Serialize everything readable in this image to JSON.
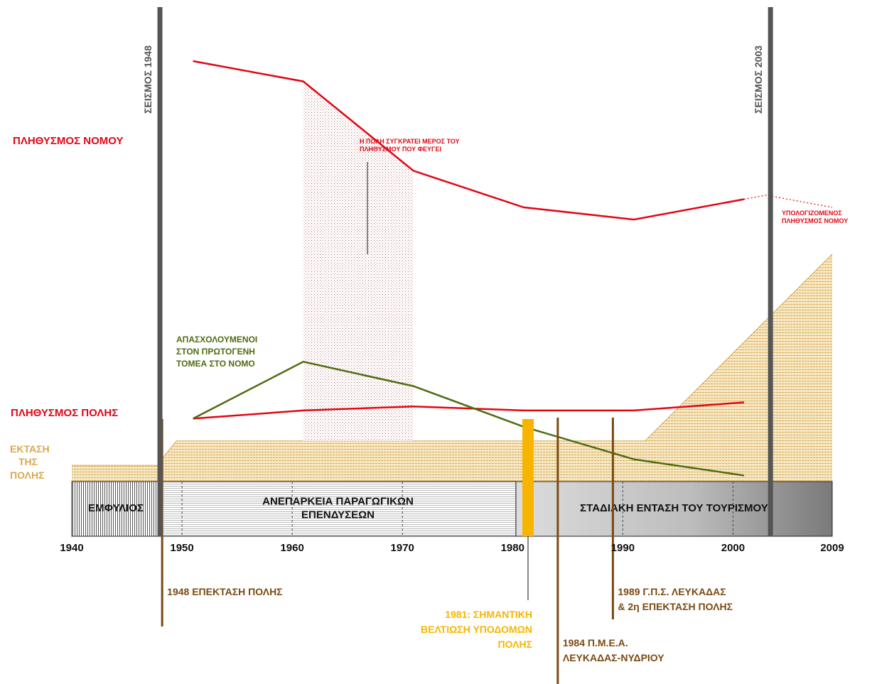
{
  "chart_data": {
    "type": "line",
    "x_range": [
      1940,
      2009
    ],
    "x_ticks": [
      "1940",
      "1950",
      "1960",
      "1970",
      "1980",
      "1990",
      "2000",
      "2009"
    ],
    "series": [
      {
        "name": "ΠΛΗΘΥΣΜΟΣ ΝΟΜΟΥ",
        "color": "#e30613",
        "x": [
          1951,
          1961,
          1971,
          1981,
          1991,
          2001
        ],
        "y": [
          100,
          95,
          73,
          64,
          61,
          66
        ]
      },
      {
        "name": "ΠΛΗΘΥΣΜΟΣ ΠΟΛΗΣ",
        "color": "#e30613",
        "x": [
          1951,
          1961,
          1971,
          1981,
          1991,
          2001
        ],
        "y": [
          12,
          14,
          15,
          14,
          14,
          16
        ]
      },
      {
        "name": "ΑΠΑΣΧΟΛΟΥΜΕΝΟΙ ΣΤΟΝ ΠΡΩΤΟΓΕΝΗ ΤΟΜΕΑ ΣΤΟ ΝΟΜΟ",
        "color": "#4f6b11",
        "x": [
          1951,
          1961,
          1971,
          1981,
          1991,
          2001
        ],
        "y": [
          12,
          26,
          20,
          10,
          2,
          -2
        ]
      }
    ],
    "projection": {
      "color": "#e30613",
      "x": [
        2001,
        2003,
        2009
      ],
      "y": [
        66,
        67,
        64
      ]
    },
    "area": {
      "name": "ΕΚΤΑΣΗ ΤΗΣ ΠΟΛΗΣ",
      "color": "#d9a94f",
      "x": [
        1940,
        1948,
        1948.3,
        1949.5,
        1992,
        2009
      ],
      "y": [
        4,
        4,
        6,
        10,
        10,
        56
      ]
    },
    "retention_band": [
      1961,
      1971
    ],
    "earthquakes": [
      {
        "year": 1948,
        "label": "ΣΕΙΣΜΟΣ 1948"
      },
      {
        "year": 2003.4,
        "label": "ΣΕΙΣΜΟΣ 2003"
      }
    ],
    "periods": [
      {
        "from": 1940,
        "to": 1948,
        "label": "ΕΜΦΥΛΙΟΣ"
      },
      {
        "from": 1948,
        "to": 1980.3,
        "label_lines": [
          "ΑΝΕΠΑΡΚΕΙΑ ΠΑΡΑΓΩΓΙΚΩΝ",
          "ΕΠΕΝΔΥΣΕΩΝ"
        ]
      },
      {
        "from": 1980.3,
        "to": 2009,
        "label": "ΣΤΑΔΙΑΚΗ ΕΝΤΑΣΗ ΤΟΥ ΤΟΥΡΙΣΜΟΥ"
      }
    ],
    "events": [
      {
        "year": 1948.2,
        "label_lines": [
          "1948 ΕΠΕΚΤΑΣΗ ΠΟΛΗΣ"
        ],
        "color": "#7b4a12"
      },
      {
        "year": 1981.4,
        "label_lines": [
          "1981: ΣΗΜΑΝΤΙΚΗ",
          "ΒΕΛΤΙΩΣΗ ΥΠΟΔΟΜΩΝ",
          "ΠΟΛΗΣ"
        ],
        "color": "#f7b500"
      },
      {
        "year": 1984.1,
        "label_lines": [
          "1984 Π.Μ.Ε.Α.",
          "ΛΕΥΚΑΔΑΣ-ΝΥΔΡΙΟΥ"
        ],
        "color": "#7b4a12"
      },
      {
        "year": 1989.1,
        "label_lines": [
          "1989 Γ.Π.Σ. ΛΕΥΚΑΔΑΣ",
          "& 2η ΕΠΕΚΤΑΣΗ ΠΟΛΗΣ"
        ],
        "color": "#7b4a12"
      }
    ]
  },
  "labels": {
    "nomos_population": "ΠΛΗΘΥΣΜΟΣ ΝΟΜΟΥ",
    "city_population": "ΠΛΗΘΥΣΜΟΣ ΠΟΛΗΣ",
    "city_area": [
      "ΕΚΤΑΣΗ",
      "ΤΗΣ",
      "ΠΟΛΗΣ"
    ],
    "primary_sector": [
      "ΑΠΑΣΧΟΛΟΥΜΕΝΟΙ",
      "ΣΤΟΝ ΠΡΩΤΟΓΕΝΗ",
      "ΤΟΜΕΑ ΣΤΟ ΝΟΜΟ"
    ],
    "retention_note": [
      "Η ΠΟΛΗ ΣΥΓΚΡΑΤΕΙ ΜΕΡΟΣ ΤΟΥ",
      "ΠΛΗΘΥΣΜΟΥ ΠΟΥ ΦΕΥΓΕΙ"
    ],
    "projected_population": [
      "ΥΠΟΛΟΓΙΖΟΜΕΝΟΣ",
      "ΠΛΗΘΥΣΜΟΣ ΝΟΜΟΥ"
    ]
  }
}
